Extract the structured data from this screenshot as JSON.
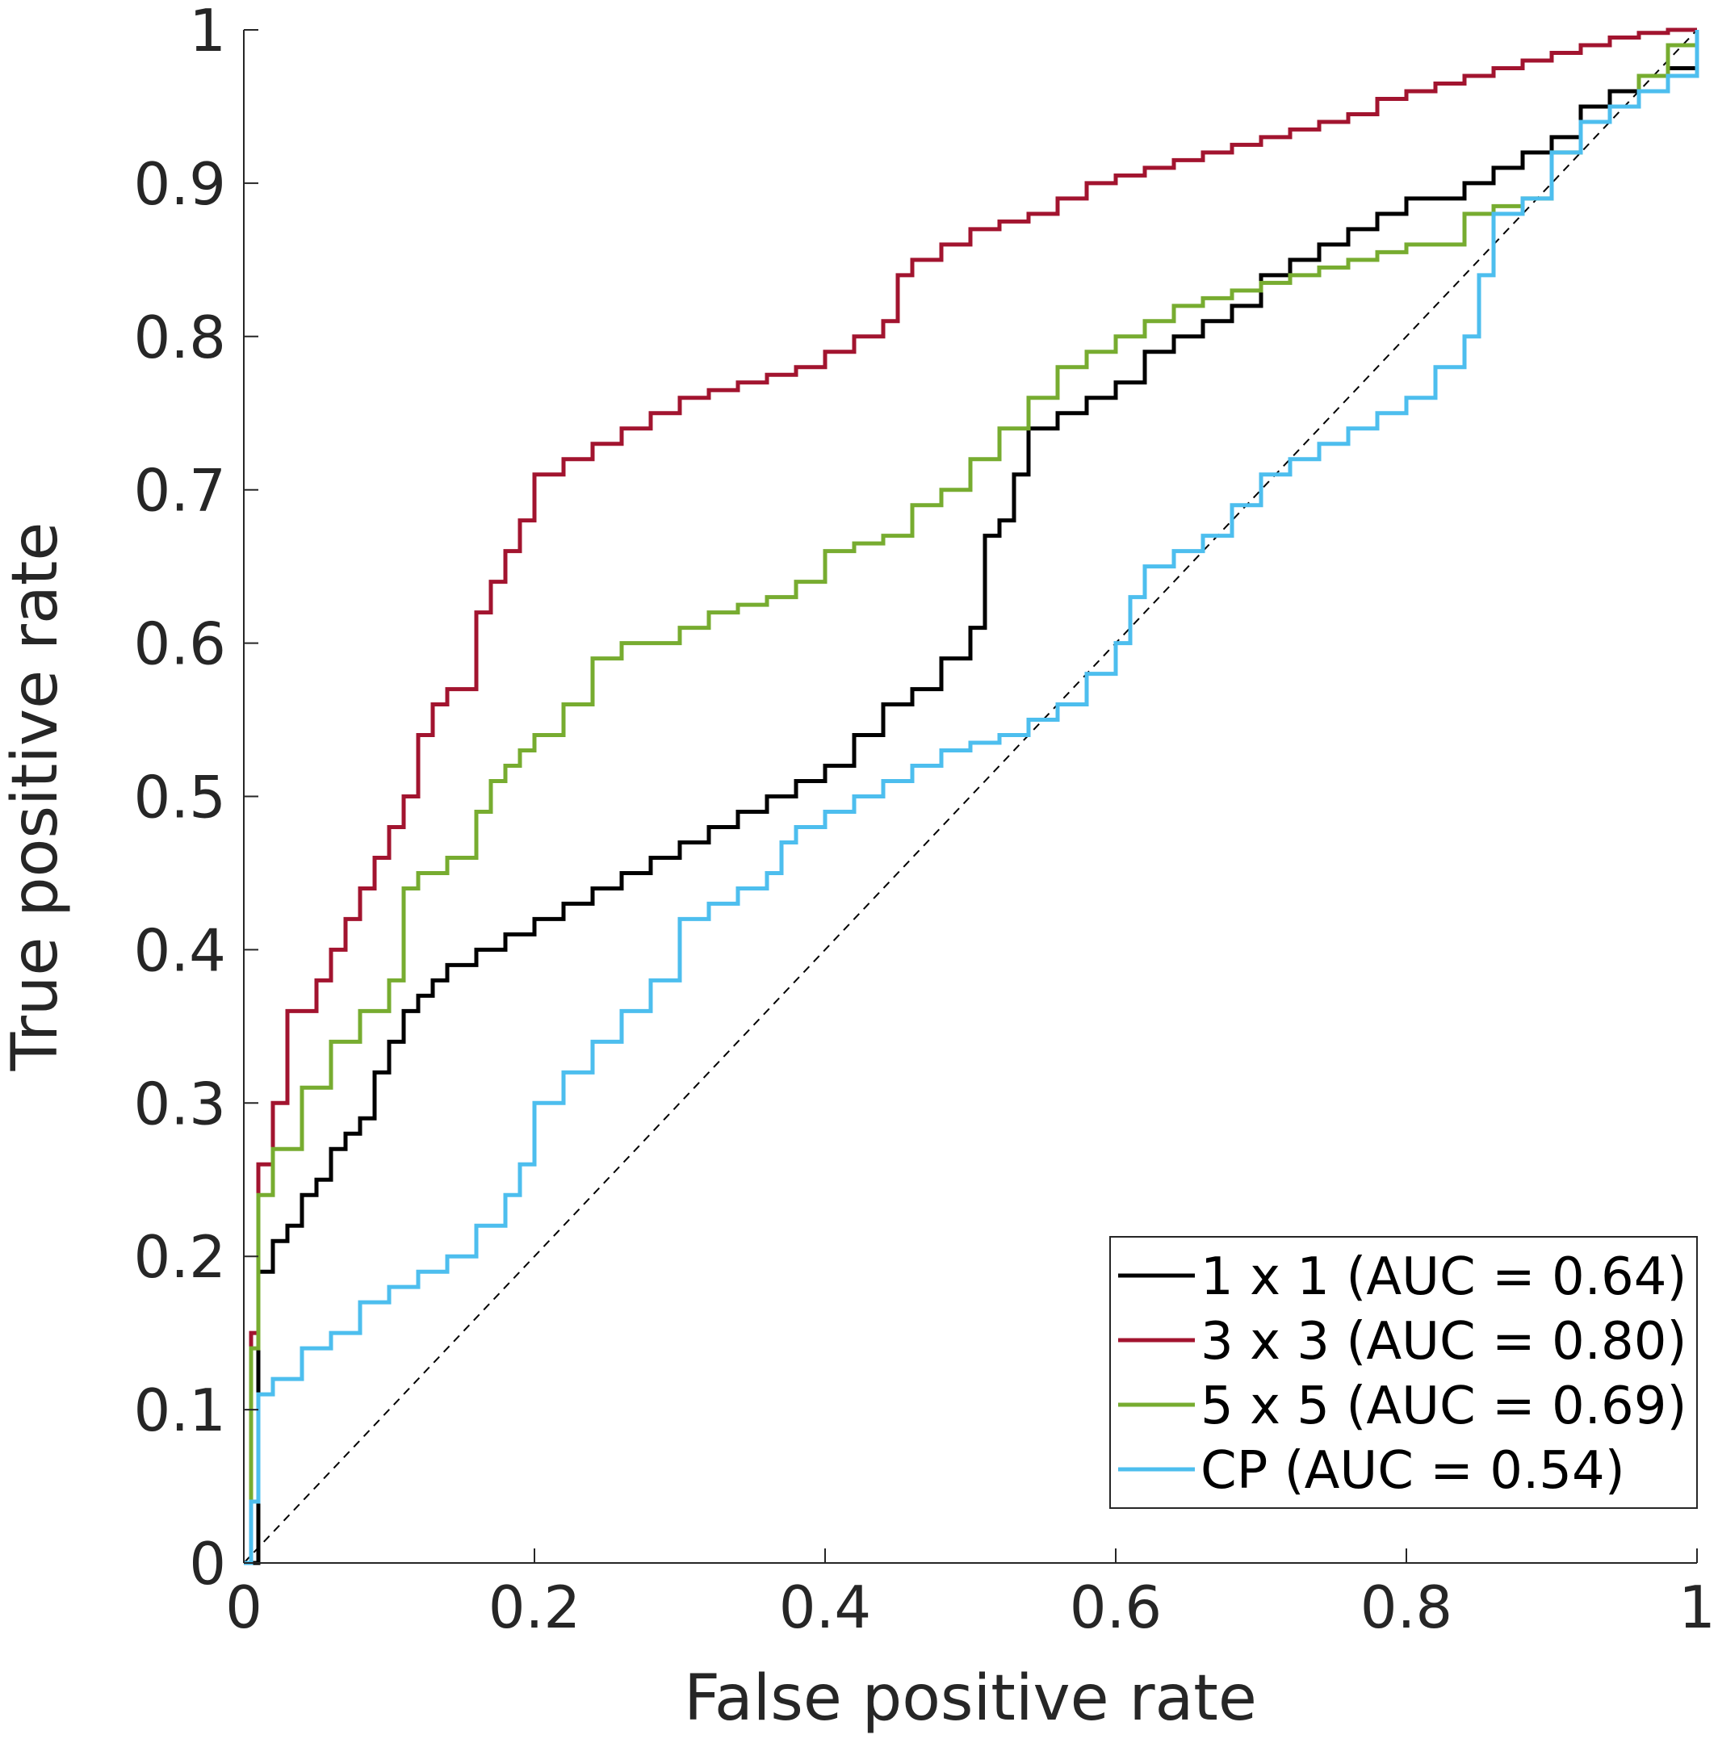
{
  "chart_data": {
    "type": "line",
    "title": "",
    "xlabel": "False positive rate",
    "ylabel": "True positive rate",
    "xlim": [
      0,
      1
    ],
    "ylim": [
      0,
      1
    ],
    "x_ticks": [
      0,
      0.2,
      0.4,
      0.6,
      0.8,
      1
    ],
    "x_tick_labels": [
      "0",
      "0.2",
      "0.4",
      "0.6",
      "0.8",
      "1"
    ],
    "y_ticks": [
      0,
      0.1,
      0.2,
      0.3,
      0.4,
      0.5,
      0.6,
      0.7,
      0.8,
      0.9,
      1
    ],
    "y_tick_labels": [
      "0",
      "0.1",
      "0.2",
      "0.3",
      "0.4",
      "0.5",
      "0.6",
      "0.7",
      "0.8",
      "0.9",
      "1"
    ],
    "grid": false,
    "legend_position": "bottom-right",
    "reference_line": {
      "x": [
        0,
        1
      ],
      "y": [
        0,
        1
      ],
      "style": "dashed",
      "color": "#000000"
    },
    "series": [
      {
        "name": "1 x 1 (AUC = 0.64)",
        "color": "#000000",
        "x": [
          0,
          0.01,
          0.01,
          0.02,
          0.02,
          0.03,
          0.04,
          0.05,
          0.06,
          0.07,
          0.08,
          0.09,
          0.1,
          0.11,
          0.12,
          0.13,
          0.14,
          0.16,
          0.18,
          0.2,
          0.22,
          0.24,
          0.26,
          0.28,
          0.3,
          0.32,
          0.34,
          0.36,
          0.38,
          0.4,
          0.42,
          0.44,
          0.46,
          0.48,
          0.5,
          0.51,
          0.52,
          0.53,
          0.54,
          0.56,
          0.58,
          0.6,
          0.62,
          0.64,
          0.66,
          0.68,
          0.7,
          0.72,
          0.74,
          0.76,
          0.78,
          0.8,
          0.82,
          0.84,
          0.86,
          0.88,
          0.9,
          0.92,
          0.94,
          0.96,
          0.98,
          1
        ],
        "y": [
          0,
          0.11,
          0.19,
          0.2,
          0.21,
          0.22,
          0.24,
          0.25,
          0.27,
          0.28,
          0.29,
          0.32,
          0.34,
          0.36,
          0.37,
          0.38,
          0.39,
          0.4,
          0.41,
          0.42,
          0.43,
          0.44,
          0.45,
          0.46,
          0.47,
          0.48,
          0.49,
          0.5,
          0.51,
          0.52,
          0.54,
          0.56,
          0.57,
          0.59,
          0.61,
          0.67,
          0.68,
          0.71,
          0.74,
          0.75,
          0.76,
          0.77,
          0.79,
          0.8,
          0.81,
          0.82,
          0.84,
          0.85,
          0.86,
          0.87,
          0.88,
          0.89,
          0.89,
          0.9,
          0.91,
          0.92,
          0.93,
          0.95,
          0.96,
          0.97,
          0.975,
          0.975
        ]
      },
      {
        "name": "3 x 3 (AUC = 0.80)",
        "color": "#a2142f",
        "x": [
          0,
          0.005,
          0.01,
          0.02,
          0.03,
          0.05,
          0.06,
          0.07,
          0.08,
          0.09,
          0.1,
          0.11,
          0.12,
          0.13,
          0.14,
          0.16,
          0.17,
          0.18,
          0.19,
          0.2,
          0.22,
          0.24,
          0.26,
          0.28,
          0.3,
          0.32,
          0.34,
          0.36,
          0.38,
          0.4,
          0.42,
          0.44,
          0.45,
          0.46,
          0.48,
          0.5,
          0.52,
          0.54,
          0.56,
          0.58,
          0.6,
          0.62,
          0.64,
          0.66,
          0.68,
          0.7,
          0.72,
          0.74,
          0.76,
          0.78,
          0.8,
          0.82,
          0.84,
          0.86,
          0.88,
          0.9,
          0.92,
          0.94,
          0.96,
          0.98,
          1
        ],
        "y": [
          0,
          0.15,
          0.26,
          0.3,
          0.36,
          0.38,
          0.4,
          0.42,
          0.44,
          0.46,
          0.48,
          0.5,
          0.54,
          0.56,
          0.57,
          0.62,
          0.64,
          0.66,
          0.68,
          0.71,
          0.72,
          0.73,
          0.74,
          0.75,
          0.76,
          0.765,
          0.77,
          0.775,
          0.78,
          0.79,
          0.8,
          0.81,
          0.84,
          0.85,
          0.86,
          0.87,
          0.875,
          0.88,
          0.89,
          0.9,
          0.905,
          0.91,
          0.915,
          0.92,
          0.925,
          0.93,
          0.935,
          0.94,
          0.945,
          0.955,
          0.96,
          0.965,
          0.97,
          0.975,
          0.98,
          0.985,
          0.99,
          0.995,
          0.998,
          1,
          1
        ]
      },
      {
        "name": "5 x 5 (AUC = 0.69)",
        "color": "#77ac30",
        "x": [
          0,
          0.005,
          0.01,
          0.02,
          0.04,
          0.06,
          0.08,
          0.1,
          0.11,
          0.12,
          0.14,
          0.16,
          0.17,
          0.18,
          0.19,
          0.2,
          0.22,
          0.24,
          0.26,
          0.28,
          0.3,
          0.32,
          0.34,
          0.36,
          0.38,
          0.4,
          0.42,
          0.44,
          0.46,
          0.48,
          0.5,
          0.52,
          0.54,
          0.56,
          0.58,
          0.6,
          0.62,
          0.64,
          0.66,
          0.68,
          0.7,
          0.72,
          0.74,
          0.76,
          0.78,
          0.8,
          0.82,
          0.84,
          0.86,
          0.88,
          0.9,
          0.92,
          0.94,
          0.96,
          0.98,
          1
        ],
        "y": [
          0,
          0.14,
          0.24,
          0.27,
          0.31,
          0.34,
          0.36,
          0.38,
          0.44,
          0.45,
          0.46,
          0.49,
          0.51,
          0.52,
          0.53,
          0.54,
          0.56,
          0.59,
          0.6,
          0.6,
          0.61,
          0.62,
          0.625,
          0.63,
          0.64,
          0.66,
          0.665,
          0.67,
          0.69,
          0.7,
          0.72,
          0.74,
          0.76,
          0.78,
          0.79,
          0.8,
          0.81,
          0.82,
          0.825,
          0.83,
          0.835,
          0.84,
          0.845,
          0.85,
          0.855,
          0.86,
          0.86,
          0.88,
          0.885,
          0.89,
          0.92,
          0.94,
          0.95,
          0.97,
          0.99,
          1
        ]
      },
      {
        "name": "CP (AUC = 0.54)",
        "color": "#4dbeee",
        "x": [
          0,
          0.005,
          0.01,
          0.02,
          0.04,
          0.06,
          0.08,
          0.1,
          0.12,
          0.14,
          0.16,
          0.18,
          0.19,
          0.2,
          0.22,
          0.24,
          0.26,
          0.28,
          0.3,
          0.32,
          0.34,
          0.36,
          0.37,
          0.38,
          0.4,
          0.42,
          0.44,
          0.46,
          0.48,
          0.5,
          0.52,
          0.54,
          0.56,
          0.58,
          0.6,
          0.61,
          0.62,
          0.64,
          0.66,
          0.68,
          0.7,
          0.72,
          0.74,
          0.76,
          0.78,
          0.8,
          0.82,
          0.84,
          0.85,
          0.86,
          0.88,
          0.9,
          0.92,
          0.94,
          0.96,
          0.98,
          1
        ],
        "y": [
          0,
          0.04,
          0.11,
          0.12,
          0.14,
          0.15,
          0.17,
          0.18,
          0.19,
          0.2,
          0.22,
          0.24,
          0.26,
          0.3,
          0.32,
          0.34,
          0.36,
          0.38,
          0.42,
          0.43,
          0.44,
          0.45,
          0.47,
          0.48,
          0.49,
          0.5,
          0.51,
          0.52,
          0.53,
          0.535,
          0.54,
          0.55,
          0.56,
          0.58,
          0.6,
          0.63,
          0.65,
          0.66,
          0.67,
          0.69,
          0.71,
          0.72,
          0.73,
          0.74,
          0.75,
          0.76,
          0.78,
          0.8,
          0.84,
          0.88,
          0.89,
          0.92,
          0.94,
          0.95,
          0.96,
          0.97,
          1
        ]
      }
    ]
  }
}
